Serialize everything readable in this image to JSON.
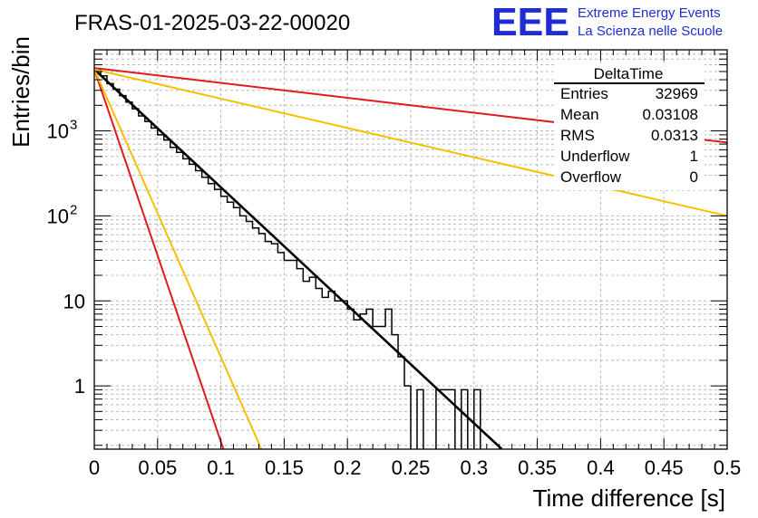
{
  "page": {
    "title": "FRAS-01-2025-03-22-00020",
    "logo": {
      "letters": "EEE",
      "line1": "Extreme Energy Events",
      "line2": "La Scienza nelle Scuole",
      "color": "#1f2bd6"
    }
  },
  "stats": {
    "name": "DeltaTime",
    "rows": [
      {
        "label": "Entries",
        "value": "32969"
      },
      {
        "label": "Mean",
        "value": "0.03108"
      },
      {
        "label": "RMS",
        "value": "0.0313"
      },
      {
        "label": "Underflow",
        "value": "1"
      },
      {
        "label": "Overflow",
        "value": "0"
      }
    ]
  },
  "chart_data": {
    "type": "line",
    "xlabel": "Time difference [s]",
    "ylabel": "Entries/bin",
    "xlim": [
      0,
      0.5
    ],
    "ylim": [
      0.18,
      9000
    ],
    "yscale": "log",
    "grid": true,
    "x_ticks": [
      {
        "value": 0,
        "label": "0"
      },
      {
        "value": 0.05,
        "label": "0.05"
      },
      {
        "value": 0.1,
        "label": "0.1"
      },
      {
        "value": 0.15,
        "label": "0.15"
      },
      {
        "value": 0.2,
        "label": "0.2"
      },
      {
        "value": 0.25,
        "label": "0.25"
      },
      {
        "value": 0.3,
        "label": "0.3"
      },
      {
        "value": 0.35,
        "label": "0.35"
      },
      {
        "value": 0.4,
        "label": "0.4"
      },
      {
        "value": 0.45,
        "label": "0.45"
      },
      {
        "value": 0.5,
        "label": "0.5"
      }
    ],
    "y_ticks": [
      {
        "value": 1,
        "label": "1"
      },
      {
        "value": 10,
        "label": "10"
      },
      {
        "value": 100,
        "label": "10",
        "exp": "2"
      },
      {
        "value": 1000,
        "label": "10",
        "exp": "3"
      }
    ],
    "histogram": {
      "bin_width": 0.005,
      "color": "#000000",
      "values": [
        5250,
        4450,
        3600,
        3100,
        2600,
        2180,
        1820,
        1500,
        1290,
        1080,
        900,
        780,
        640,
        560,
        470,
        405,
        340,
        285,
        240,
        205,
        170,
        145,
        125,
        100,
        86,
        72,
        62,
        50,
        47,
        37,
        30,
        30,
        24,
        17,
        19,
        14,
        11,
        13,
        10,
        10,
        8,
        6,
        7,
        8,
        5,
        5,
        8,
        4,
        2.2,
        1,
        0,
        0.9,
        0,
        0,
        0.9,
        0.9,
        0.9,
        0,
        0.9,
        0,
        0.9,
        0,
        0,
        0,
        0
      ]
    },
    "series": [
      {
        "color": "#000000",
        "x": [
          0,
          0.322
        ],
        "y": [
          5300,
          0.18
        ]
      },
      {
        "color": "#e11b1b",
        "x": [
          0,
          0.5
        ],
        "y": [
          5500,
          730
        ]
      },
      {
        "color": "#f5c000",
        "x": [
          0,
          0.5
        ],
        "y": [
          5300,
          100
        ]
      },
      {
        "color": "#e11b1b",
        "x": [
          0,
          0.102
        ],
        "y": [
          5300,
          0.18
        ]
      },
      {
        "color": "#f5c000",
        "x": [
          0,
          0.132
        ],
        "y": [
          5300,
          0.18
        ]
      }
    ]
  }
}
